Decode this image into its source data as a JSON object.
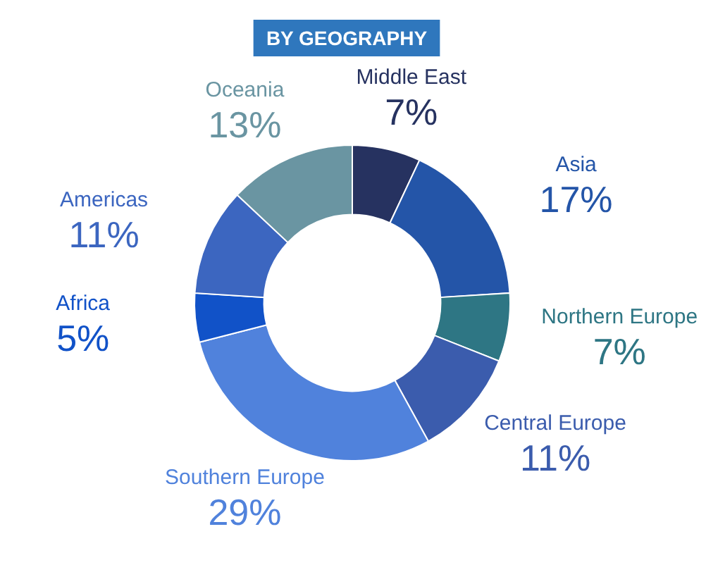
{
  "chart_data": {
    "type": "donut",
    "title": "BY GEOGRAPHY",
    "categories": [
      "Middle East",
      "Asia",
      "Northern Europe",
      "Central Europe",
      "Southern Europe",
      "Africa",
      "Americas",
      "Oceania"
    ],
    "values": [
      7,
      17,
      7,
      11,
      29,
      5,
      11,
      13
    ],
    "value_labels": [
      "7%",
      "17%",
      "7%",
      "11%",
      "29%",
      "5%",
      "11%",
      "13%"
    ],
    "colors": [
      "#263260",
      "#2455a8",
      "#2e7684",
      "#3b5cad",
      "#5082dc",
      "#1152c8",
      "#3c66c0",
      "#6a95a2"
    ]
  }
}
